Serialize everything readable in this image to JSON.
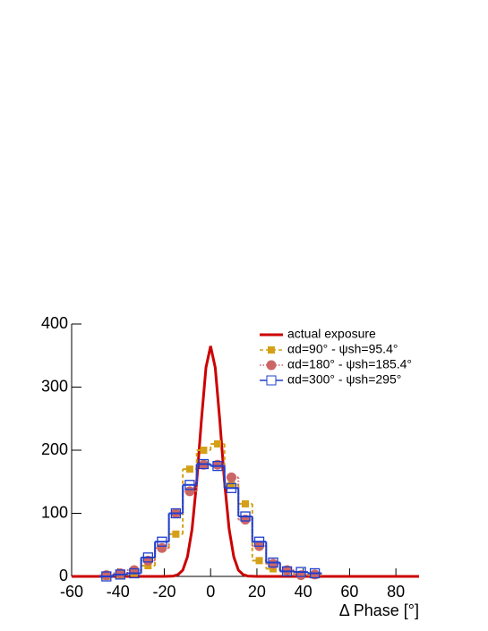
{
  "chart_data": {
    "type": "line",
    "xlabel": "Δ Phase [°]",
    "xlim": [
      -60,
      90
    ],
    "ylim": [
      0,
      400
    ],
    "xticks": [
      -60,
      -40,
      -20,
      0,
      20,
      40,
      60,
      80
    ],
    "yticks": [
      0,
      100,
      200,
      300,
      400
    ],
    "legend": "upper right",
    "series": [
      {
        "name": "actual exposure",
        "color": "#cc0000",
        "drawstyle": "line",
        "marker": "none",
        "dash": "solid",
        "x": [
          -60,
          -20,
          -16,
          -14,
          -12,
          -10,
          -8,
          -6,
          -4,
          -2,
          0,
          2,
          4,
          6,
          8,
          10,
          12,
          14,
          16,
          20,
          90
        ],
        "values": [
          0,
          0,
          0.6,
          3,
          10,
          31,
          75,
          150,
          246,
          331,
          365,
          331,
          246,
          150,
          75,
          31,
          10,
          3,
          0.6,
          0,
          0
        ]
      },
      {
        "name": "αd=90° - ψsh=95.4°",
        "color": "#d4a017",
        "drawstyle": "steps-mid",
        "marker": "square",
        "dash": "dashed",
        "x": [
          -45,
          -39,
          -33,
          -27,
          -21,
          -15,
          -9,
          -3,
          3,
          9,
          15,
          21,
          27,
          33,
          39,
          45
        ],
        "values": [
          0,
          2,
          5,
          17,
          45,
          67,
          170,
          200,
          210,
          145,
          115,
          25,
          12,
          8,
          3,
          2
        ]
      },
      {
        "name": "αd=180° - ψsh=185.4°",
        "color": "#cc6666",
        "drawstyle": "steps-mid",
        "marker": "circle",
        "dash": "dotted",
        "x": [
          -45,
          -39,
          -33,
          -27,
          -21,
          -15,
          -9,
          -3,
          3,
          9,
          15,
          21,
          27,
          33,
          39,
          45
        ],
        "values": [
          2,
          5,
          10,
          25,
          45,
          100,
          135,
          177,
          177,
          157,
          90,
          48,
          20,
          10,
          2,
          3
        ]
      },
      {
        "name": "αd=300° - ψsh=295°",
        "color": "#1f3fcc",
        "drawstyle": "steps-mid",
        "marker": "open-square",
        "dash": "solid",
        "x": [
          -45,
          -39,
          -33,
          -27,
          -21,
          -15,
          -9,
          -3,
          3,
          9,
          15,
          21,
          27,
          33,
          39,
          45
        ],
        "values": [
          0,
          3,
          5,
          30,
          55,
          100,
          145,
          178,
          175,
          140,
          95,
          55,
          22,
          8,
          7,
          5
        ]
      }
    ]
  }
}
